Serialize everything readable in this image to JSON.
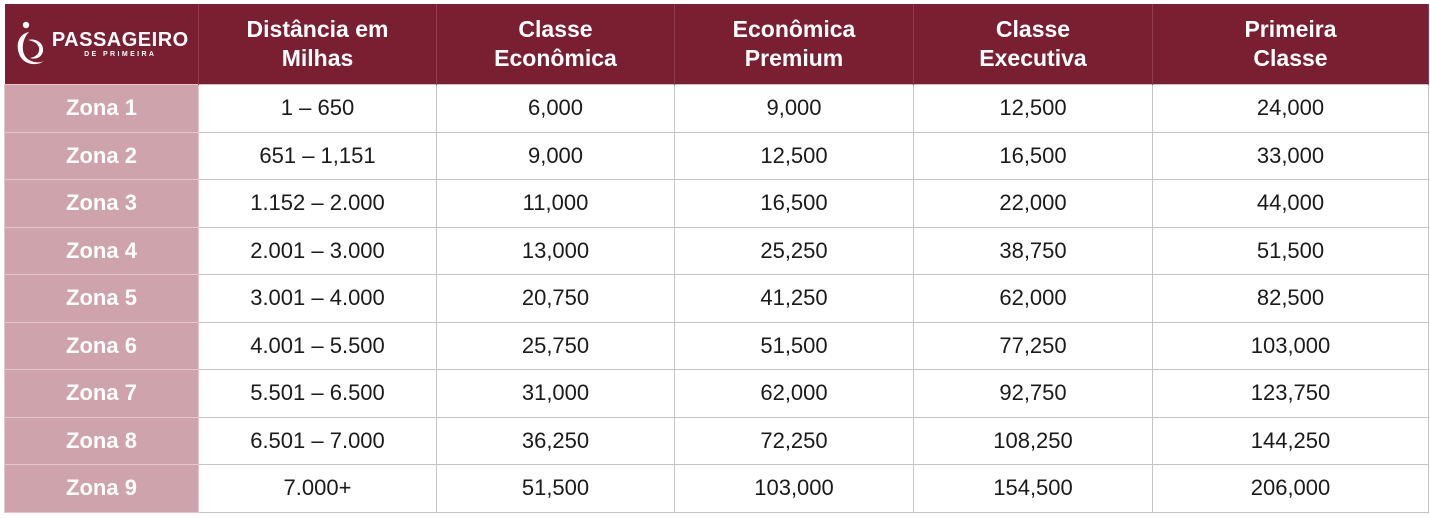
{
  "brand": {
    "name": "PASSAGEIRO",
    "tagline": "DE PRIMEIRA",
    "colors": {
      "header": "#7a1f32",
      "zone_cell": "#cfa3ab",
      "text": "#1a1a1a"
    }
  },
  "table": {
    "columns": [
      {
        "line1": "Distância em",
        "line2": "Milhas"
      },
      {
        "line1": "Classe",
        "line2": "Econômica"
      },
      {
        "line1": "Econômica",
        "line2": "Premium"
      },
      {
        "line1": "Classe",
        "line2": "Executiva"
      },
      {
        "line1": "Primeira",
        "line2": "Classe"
      }
    ],
    "rows": [
      {
        "zone": "Zona 1",
        "distance": "1 – 650",
        "economy": "6,000",
        "premium_economy": "9,000",
        "business": "12,500",
        "first": "24,000"
      },
      {
        "zone": "Zona 2",
        "distance": "651 – 1,151",
        "economy": "9,000",
        "premium_economy": "12,500",
        "business": "16,500",
        "first": "33,000"
      },
      {
        "zone": "Zona 3",
        "distance": "1.152 – 2.000",
        "economy": "11,000",
        "premium_economy": "16,500",
        "business": "22,000",
        "first": "44,000"
      },
      {
        "zone": "Zona 4",
        "distance": "2.001 – 3.000",
        "economy": "13,000",
        "premium_economy": "25,250",
        "business": "38,750",
        "first": "51,500"
      },
      {
        "zone": "Zona 5",
        "distance": "3.001 – 4.000",
        "economy": "20,750",
        "premium_economy": "41,250",
        "business": "62,000",
        "first": "82,500"
      },
      {
        "zone": "Zona 6",
        "distance": "4.001 – 5.500",
        "economy": "25,750",
        "premium_economy": "51,500",
        "business": "77,250",
        "first": "103,000"
      },
      {
        "zone": "Zona 7",
        "distance": "5.501 – 6.500",
        "economy": "31,000",
        "premium_economy": "62,000",
        "business": "92,750",
        "first": "123,750"
      },
      {
        "zone": "Zona 8",
        "distance": "6.501 – 7.000",
        "economy": "36,250",
        "premium_economy": "72,250",
        "business": "108,250",
        "first": "144,250"
      },
      {
        "zone": "Zona 9",
        "distance": "7.000+",
        "economy": "51,500",
        "premium_economy": "103,000",
        "business": "154,500",
        "first": "206,000"
      }
    ]
  }
}
